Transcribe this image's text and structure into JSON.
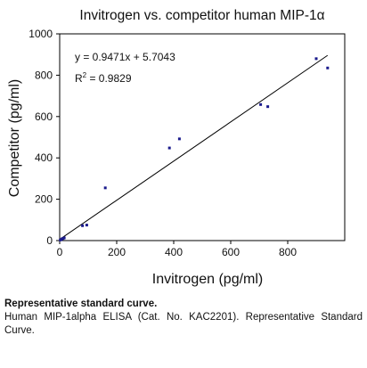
{
  "chart_data": {
    "type": "scatter",
    "title": "Invitrogen vs. competitor human MIP-1α",
    "xlabel": "Invitrogen (pg/ml)",
    "ylabel": "Competitor (pg/ml)",
    "xlim": [
      0,
      1000
    ],
    "ylim": [
      0,
      1000
    ],
    "x_ticks": [
      0,
      200,
      400,
      600,
      800
    ],
    "y_ticks": [
      0,
      200,
      400,
      600,
      800,
      1000
    ],
    "grid": false,
    "marker_color": "#1a1a8c",
    "points": [
      {
        "x": 2,
        "y": 3
      },
      {
        "x": 5,
        "y": 5
      },
      {
        "x": 8,
        "y": 8
      },
      {
        "x": 12,
        "y": 10
      },
      {
        "x": 16,
        "y": 13
      },
      {
        "x": 80,
        "y": 72
      },
      {
        "x": 95,
        "y": 75
      },
      {
        "x": 160,
        "y": 255
      },
      {
        "x": 385,
        "y": 448
      },
      {
        "x": 420,
        "y": 492
      },
      {
        "x": 705,
        "y": 658
      },
      {
        "x": 730,
        "y": 648
      },
      {
        "x": 900,
        "y": 880
      },
      {
        "x": 940,
        "y": 835
      }
    ],
    "trendline": {
      "slope": 0.9471,
      "intercept": 5.7043,
      "x_range": [
        0,
        940
      ],
      "equation": "y = 0.9471x + 5.7043",
      "r2_label": "R",
      "r2_exponent": "2",
      "r2_value": " = 0.9829"
    }
  },
  "caption": {
    "title": "Representative standard curve.",
    "body": "Human MIP-1alpha ELISA (Cat. No. KAC2201). Representative Standard Curve."
  }
}
